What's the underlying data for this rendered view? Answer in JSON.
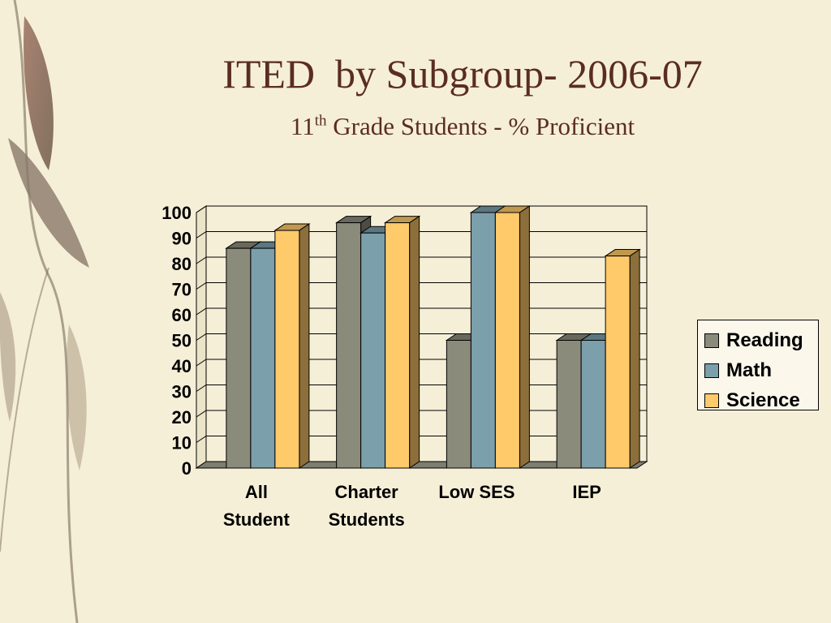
{
  "slide": {
    "title": "ITED  by Subgroup- 2006-07",
    "subtitle_prefix": "11",
    "subtitle_sup": "th",
    "subtitle_rest": " Grade Students - % Proficient"
  },
  "chart_data": {
    "type": "bar",
    "title": "ITED  by Subgroup- 2006-07",
    "subtitle": "11th Grade Students - % Proficient",
    "categories": [
      [
        "All",
        "Student"
      ],
      [
        "Charter",
        "Students"
      ],
      [
        "Low SES"
      ],
      [
        "IEP"
      ]
    ],
    "series": [
      {
        "name": "Reading",
        "values": [
          86,
          96,
          50,
          50
        ],
        "color": "#8b8b7c"
      },
      {
        "name": "Math",
        "values": [
          86,
          92,
          100,
          50
        ],
        "color": "#7b9fab"
      },
      {
        "name": "Science",
        "values": [
          93,
          96,
          100,
          83
        ],
        "color": "#ffca6a"
      }
    ],
    "yticks": [
      "0",
      "10",
      "20",
      "30",
      "40",
      "50",
      "60",
      "70",
      "80",
      "90",
      "100"
    ],
    "ylim": [
      0,
      100
    ],
    "grid": true,
    "style": "3d-clustered-bar",
    "legend_position": "right"
  }
}
